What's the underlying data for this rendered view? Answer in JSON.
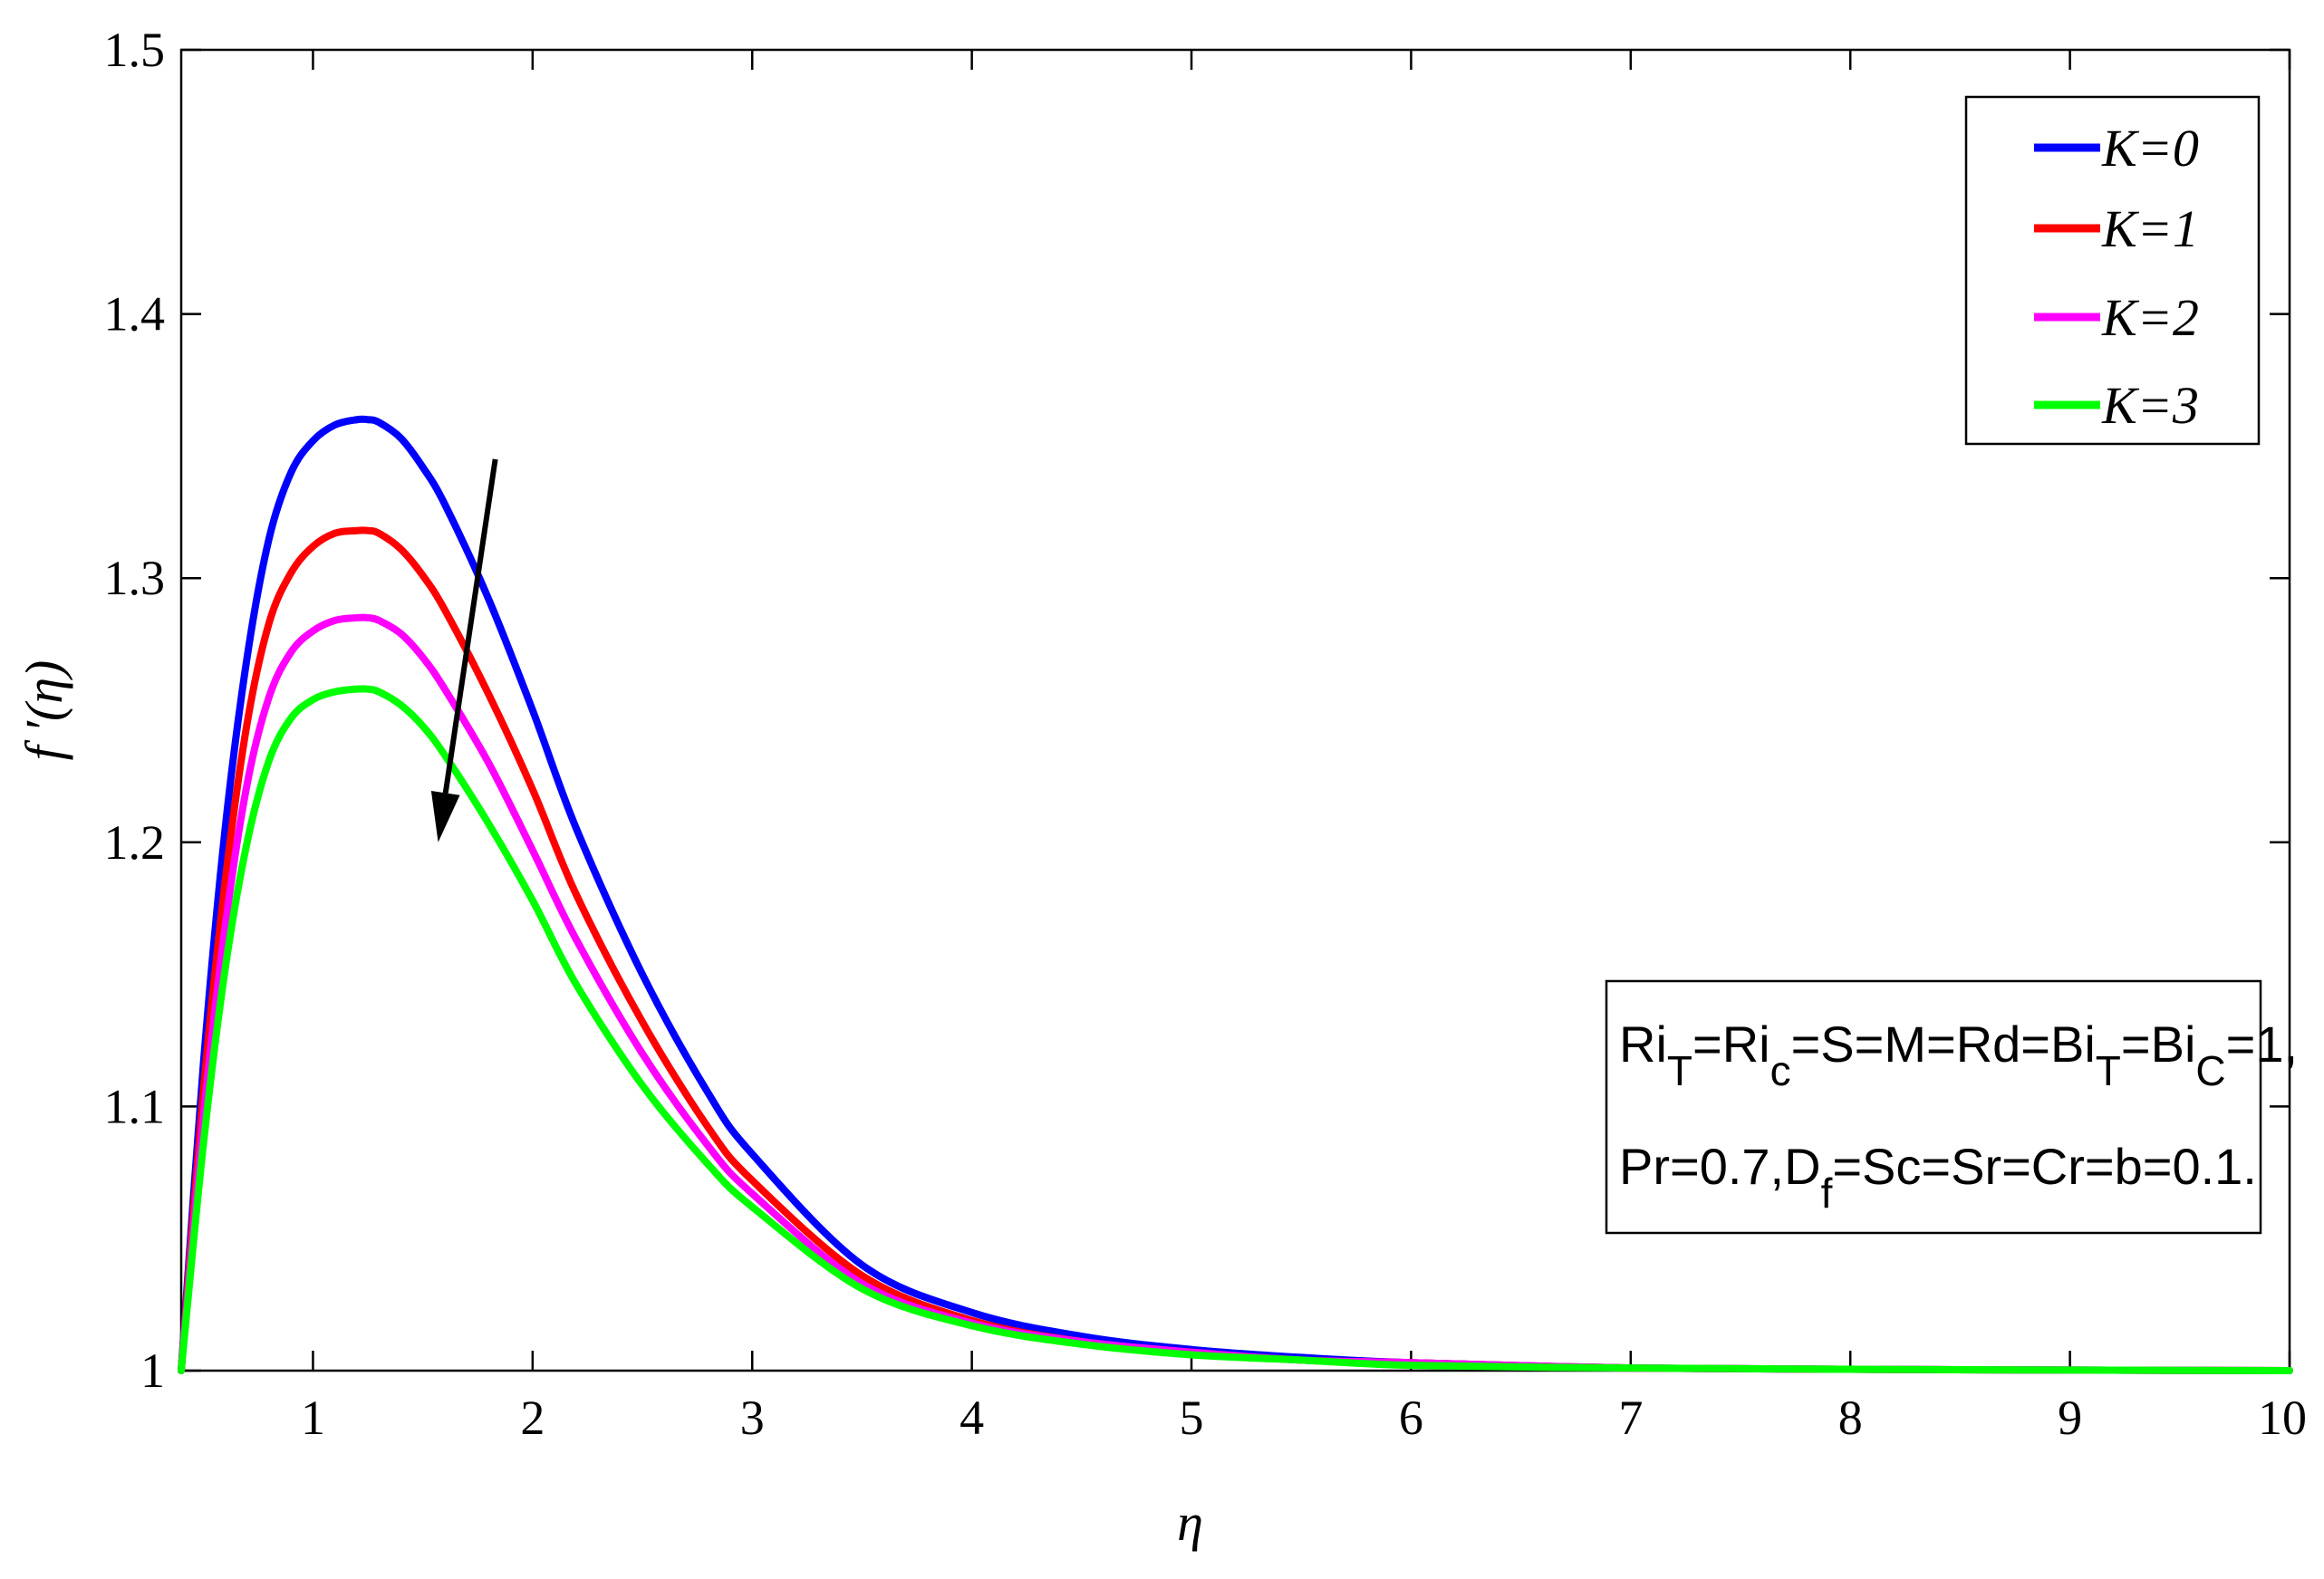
{
  "chart_data": {
    "type": "line",
    "xlabel": "η",
    "ylabel": "f ′(η)",
    "xlim": [
      0.4,
      10
    ],
    "ylim": [
      1,
      1.5
    ],
    "xticks": [
      1,
      2,
      3,
      4,
      5,
      6,
      7,
      8,
      9,
      10
    ],
    "xtick_labels": [
      "1",
      "2",
      "3",
      "4",
      "5",
      "6",
      "7",
      "8",
      "9",
      "10"
    ],
    "yticks": [
      1,
      1.1,
      1.2,
      1.3,
      1.4,
      1.5
    ],
    "ytick_labels": [
      "1",
      "1.1",
      "1.2",
      "1.3",
      "1.4",
      "1.5"
    ],
    "grid": false,
    "legend_position": "top-right",
    "x": [
      0.4,
      0.5,
      0.6,
      0.7,
      0.8,
      0.9,
      1.0,
      1.1,
      1.2,
      1.25,
      1.3,
      1.4,
      1.5,
      1.6,
      1.8,
      2.0,
      2.2,
      2.5,
      2.8,
      3.0,
      3.5,
      4.0,
      4.5,
      5.0,
      5.5,
      6.0,
      7.0,
      8.0,
      9.0,
      10.0
    ],
    "series": [
      {
        "name": "K=0",
        "color": "#0000ff",
        "values": [
          1.0,
          1.115,
          1.205,
          1.27,
          1.315,
          1.34,
          1.352,
          1.358,
          1.36,
          1.36,
          1.359,
          1.353,
          1.342,
          1.328,
          1.292,
          1.25,
          1.205,
          1.15,
          1.105,
          1.082,
          1.04,
          1.022,
          1.013,
          1.008,
          1.005,
          1.003,
          1.001,
          1.0005,
          1.0002,
          1.0
        ]
      },
      {
        "name": "K=1",
        "color": "#ff0000",
        "values": [
          1.0,
          1.105,
          1.185,
          1.245,
          1.283,
          1.302,
          1.312,
          1.317,
          1.318,
          1.318,
          1.317,
          1.311,
          1.301,
          1.288,
          1.256,
          1.22,
          1.18,
          1.132,
          1.092,
          1.072,
          1.036,
          1.019,
          1.011,
          1.007,
          1.004,
          1.003,
          1.001,
          1.0005,
          1.0002,
          1.0
        ]
      },
      {
        "name": "K=2",
        "color": "#ff00ff",
        "values": [
          1.0,
          1.095,
          1.168,
          1.222,
          1.255,
          1.272,
          1.28,
          1.284,
          1.285,
          1.285,
          1.284,
          1.279,
          1.27,
          1.258,
          1.23,
          1.197,
          1.163,
          1.12,
          1.085,
          1.067,
          1.033,
          1.018,
          1.011,
          1.007,
          1.004,
          1.003,
          1.001,
          1.0005,
          1.0002,
          1.0
        ]
      },
      {
        "name": "K=3",
        "color": "#00ff00",
        "values": [
          1.0,
          1.085,
          1.152,
          1.2,
          1.231,
          1.247,
          1.254,
          1.257,
          1.258,
          1.258,
          1.257,
          1.252,
          1.244,
          1.233,
          1.207,
          1.178,
          1.146,
          1.108,
          1.078,
          1.062,
          1.031,
          1.017,
          1.01,
          1.006,
          1.004,
          1.002,
          1.001,
          1.0005,
          1.0002,
          1.0
        ]
      }
    ],
    "annotations": {
      "trend_arrow": {
        "from": [
          1.83,
          1.345
        ],
        "to": [
          1.57,
          1.2
        ],
        "meaning": "decreasing with increasing K"
      },
      "parameters": {
        "line1_parts": [
          "Ri",
          "T",
          "=Ri",
          "c",
          "=S=M=Rd=Bi",
          "T",
          "=Bi",
          "C",
          "=1,"
        ],
        "line2_parts": [
          "Pr=0.7,D",
          "f",
          "=Sc=Sr=Cr=b=0.1."
        ]
      }
    }
  }
}
